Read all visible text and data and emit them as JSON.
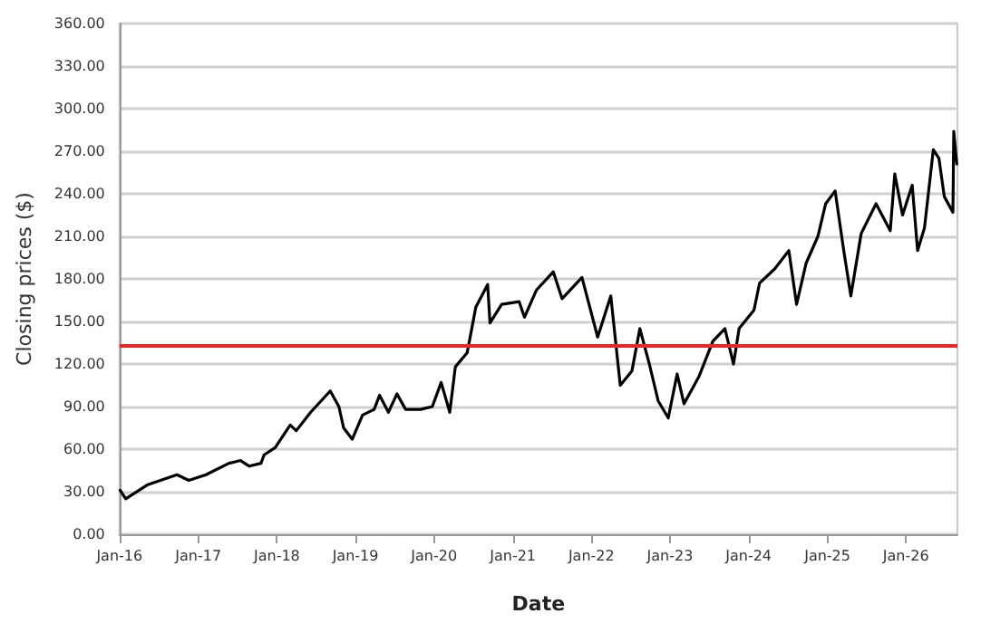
{
  "chart_data": {
    "type": "line",
    "xlabel": "Date",
    "ylabel": "Closing prices ($)",
    "x": [
      "2016-01-04",
      "2016-01-30",
      "2016-05-12",
      "2016-09-24",
      "2016-11-18",
      "2017-02-06",
      "2017-05-23",
      "2017-07-16",
      "2017-08-26",
      "2017-10-19",
      "2017-11-03",
      "2017-12-24",
      "2018-03-04",
      "2018-04-01",
      "2018-06-07",
      "2018-09-06",
      "2018-10-16",
      "2018-11-07",
      "2018-12-17",
      "2019-02-03",
      "2019-03-29",
      "2019-04-23",
      "2019-06-03",
      "2019-07-13",
      "2019-08-22",
      "2019-10-30",
      "2019-12-24",
      "2020-02-03",
      "2020-03-14",
      "2020-04-09",
      "2020-06-03",
      "2020-07-13",
      "2020-09-06",
      "2020-09-17",
      "2020-11-10",
      "2021-01-30",
      "2021-02-24",
      "2021-04-20",
      "2021-07-08",
      "2021-08-18",
      "2021-11-18",
      "2022-01-30",
      "2022-04-01",
      "2022-05-15",
      "2022-07-08",
      "2022-08-14",
      "2022-09-27",
      "2022-11-07",
      "2022-12-24",
      "2023-02-03",
      "2023-03-07",
      "2023-05-15",
      "2023-07-19",
      "2023-09-13",
      "2023-10-23",
      "2023-11-18",
      "2024-01-26",
      "2024-02-21",
      "2024-05-01",
      "2024-07-06",
      "2024-08-11",
      "2024-09-24",
      "2024-11-18",
      "2024-12-24",
      "2025-02-06",
      "2025-03-18",
      "2025-04-20",
      "2025-06-07",
      "2025-08-15",
      "2025-10-20",
      "2025-11-10",
      "2025-12-16",
      "2026-01-30",
      "2026-02-24",
      "2026-03-28",
      "2026-05-08",
      "2026-06-03",
      "2026-06-28",
      "2026-08-07",
      "2026-08-11",
      "2026-08-25"
    ],
    "series": [
      {
        "color": "#000000",
        "values": [
          31,
          25,
          35,
          42,
          38,
          42,
          50,
          52,
          48,
          50,
          56,
          61,
          77,
          73,
          86,
          101,
          90,
          75,
          67,
          84,
          88,
          98,
          86,
          99,
          88,
          88,
          90,
          107,
          86,
          118,
          128,
          160,
          176,
          149,
          162,
          164,
          153,
          172,
          185,
          166,
          181,
          139,
          168,
          105,
          115,
          145,
          120,
          94,
          82,
          113,
          92,
          111,
          136,
          145,
          120,
          145,
          158,
          177,
          187,
          200,
          162,
          191,
          210,
          233,
          242,
          200,
          168,
          212,
          233,
          214,
          254,
          225,
          246,
          200,
          216,
          271,
          265,
          238,
          227,
          284,
          261
        ]
      }
    ],
    "xlim": [
      "2016-01-01",
      "2026-08-28"
    ],
    "xticks": [
      {
        "value": "2016-01-01",
        "label": "Jan-16"
      },
      {
        "value": "2017-01-01",
        "label": "Jan-17"
      },
      {
        "value": "2018-01-01",
        "label": "Jan-18"
      },
      {
        "value": "2019-01-01",
        "label": "Jan-19"
      },
      {
        "value": "2020-01-01",
        "label": "Jan-20"
      },
      {
        "value": "2021-01-01",
        "label": "Jan-21"
      },
      {
        "value": "2022-01-01",
        "label": "Jan-22"
      },
      {
        "value": "2023-01-01",
        "label": "Jan-23"
      },
      {
        "value": "2024-01-01",
        "label": "Jan-24"
      },
      {
        "value": "2025-01-01",
        "label": "Jan-25"
      },
      {
        "value": "2026-01-01",
        "label": "Jan-26"
      }
    ],
    "ylim": [
      0,
      360
    ],
    "yticks": [
      {
        "value": 0,
        "label": "0.00"
      },
      {
        "value": 30,
        "label": "30.00"
      },
      {
        "value": 60,
        "label": "60.00"
      },
      {
        "value": 90,
        "label": "90.00"
      },
      {
        "value": 120,
        "label": "120.00"
      },
      {
        "value": 150,
        "label": "150.00"
      },
      {
        "value": 180,
        "label": "180.00"
      },
      {
        "value": 210,
        "label": "210.00"
      },
      {
        "value": 240,
        "label": "240.00"
      },
      {
        "value": 270,
        "label": "270.00"
      },
      {
        "value": 300,
        "label": "300.00"
      },
      {
        "value": 330,
        "label": "330.00"
      },
      {
        "value": 360,
        "label": "360.00"
      }
    ],
    "ref_lines": [
      {
        "axis": "y",
        "value": 133,
        "color": "#e8262a"
      }
    ],
    "grid": "y",
    "marker": "none",
    "line_style": "solid"
  }
}
